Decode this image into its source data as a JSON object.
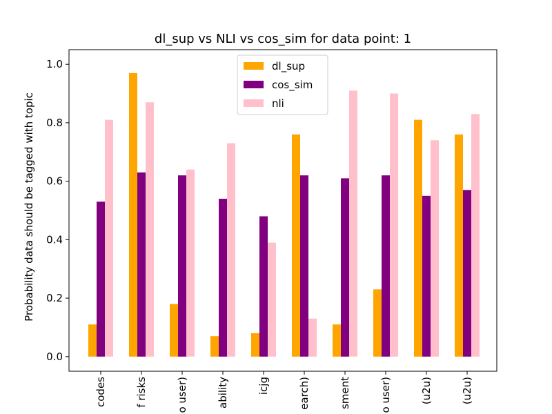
{
  "chart_data": {
    "type": "bar",
    "title": "dl_sup vs NLI vs cos_sim for data point: 1",
    "xlabel": "",
    "ylabel": "Probability data should be tagged with topic",
    "ylim": [
      -0.05,
      1.05
    ],
    "yticks": [
      "0.0",
      "0.2",
      "0.4",
      "0.6",
      "0.8",
      "1.0"
    ],
    "categories": [
      "codes",
      "f risks",
      "o user)",
      "ability",
      "icjg",
      "earch)",
      "sment",
      "o user)",
      "(u2u)",
      "(u2u)"
    ],
    "series": [
      {
        "name": "dl_sup",
        "color": "#ffa500",
        "values": [
          0.11,
          0.97,
          0.18,
          0.07,
          0.08,
          0.76,
          0.11,
          0.23,
          0.81,
          0.76
        ]
      },
      {
        "name": "cos_sim",
        "color": "#800080",
        "values": [
          0.53,
          0.63,
          0.62,
          0.54,
          0.48,
          0.62,
          0.61,
          0.62,
          0.55,
          0.57
        ]
      },
      {
        "name": "nli",
        "color": "#ffc0cb",
        "values": [
          0.81,
          0.87,
          0.64,
          0.73,
          0.39,
          0.13,
          0.91,
          0.9,
          0.74,
          0.83
        ]
      }
    ],
    "legend_position": "top-center",
    "grid": false
  }
}
